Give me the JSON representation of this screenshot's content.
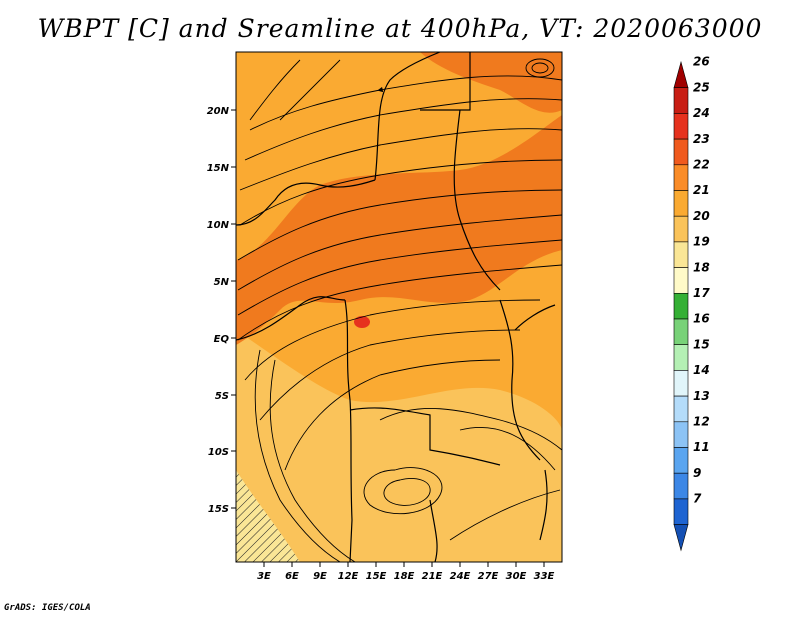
{
  "title": "WBPT [C] and Sreamline at 400hPa, VT: 2020063000",
  "credit": "GrADS: IGES/COLA",
  "map": {
    "lat_labels": [
      "20N",
      "15N",
      "10N",
      "5N",
      "EQ",
      "5S",
      "10S",
      "15S"
    ],
    "lon_labels": [
      "3E",
      "6E",
      "9E",
      "12E",
      "15E",
      "18E",
      "21E",
      "24E",
      "27E",
      "30E",
      "33E"
    ]
  },
  "colorbar": {
    "labels": [
      "26",
      "25",
      "24",
      "23",
      "22",
      "21",
      "20",
      "19",
      "18",
      "17",
      "16",
      "15",
      "14",
      "13",
      "12",
      "11",
      "9",
      "7"
    ],
    "colors": [
      "#a00000",
      "#c81e14",
      "#e6321e",
      "#f05a1e",
      "#fa8c28",
      "#faaa32",
      "#fac35a",
      "#fae696",
      "#fffac8",
      "#35b035",
      "#78d278",
      "#b4f0b4",
      "#e1f5fa",
      "#b4dcfa",
      "#8cc3f5",
      "#5aa5f0",
      "#3c87e6",
      "#1e64d2",
      "#1450b4"
    ]
  }
}
